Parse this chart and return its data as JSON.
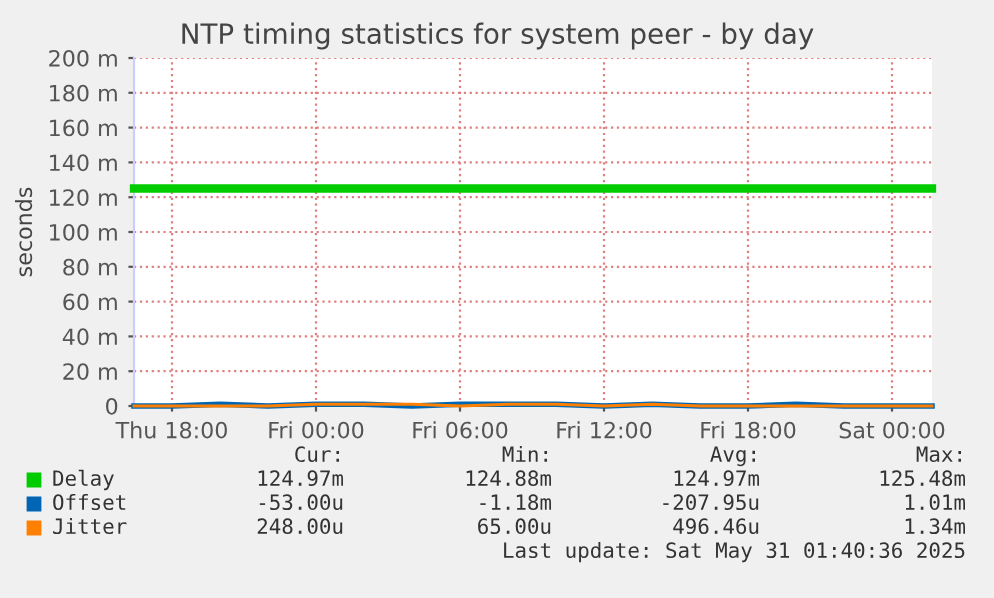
{
  "chart_data": {
    "type": "line",
    "title": "NTP timing statistics for system peer - by day",
    "ylabel": "seconds",
    "x": [
      "2025-05-29T16:25",
      "2025-05-29T18:00",
      "2025-05-29T20:00",
      "2025-05-29T22:00",
      "2025-05-30T00:00",
      "2025-05-30T02:00",
      "2025-05-30T04:00",
      "2025-05-30T06:00",
      "2025-05-30T08:00",
      "2025-05-30T10:00",
      "2025-05-30T12:00",
      "2025-05-30T14:00",
      "2025-05-30T16:00",
      "2025-05-30T18:00",
      "2025-05-30T20:00",
      "2025-05-30T22:00",
      "2025-05-31T00:00",
      "2025-05-31T01:40"
    ],
    "series": [
      {
        "name": "Delay",
        "color": "#00cc00",
        "values": [
          125,
          125,
          125,
          125,
          125,
          125,
          125,
          125,
          125,
          125,
          125,
          125,
          125,
          125,
          125,
          125,
          125,
          125
        ]
      },
      {
        "name": "Offset",
        "color": "#0066b3",
        "values": [
          0,
          0,
          1,
          0,
          1,
          1,
          0,
          1,
          1,
          1,
          0,
          1,
          0,
          0,
          1,
          0,
          0,
          0
        ]
      },
      {
        "name": "Jitter",
        "color": "#ff8000",
        "values": [
          0,
          0,
          0,
          0,
          1,
          1,
          1,
          0,
          1,
          1,
          0,
          1,
          0,
          0,
          0,
          0,
          0,
          0
        ]
      }
    ],
    "xlim": [
      "2025-05-29T16:25",
      "2025-05-31T01:40"
    ],
    "xticks": [
      {
        "value": "2025-05-29T18:00",
        "label": "Thu 18:00"
      },
      {
        "value": "2025-05-30T00:00",
        "label": "Fri 00:00"
      },
      {
        "value": "2025-05-30T06:00",
        "label": "Fri 06:00"
      },
      {
        "value": "2025-05-30T12:00",
        "label": "Fri 12:00"
      },
      {
        "value": "2025-05-30T18:00",
        "label": "Fri 18:00"
      },
      {
        "value": "2025-05-31T00:00",
        "label": "Sat 00:00"
      }
    ],
    "ylim": [
      0,
      200
    ],
    "yticks": [
      0,
      {
        "value": 20,
        "label": "20 m"
      },
      {
        "value": 40,
        "label": "40 m"
      },
      {
        "value": 60,
        "label": "60 m"
      },
      {
        "value": 80,
        "label": "80 m"
      },
      {
        "value": 100,
        "label": "100 m"
      },
      {
        "value": 120,
        "label": "120 m"
      },
      {
        "value": 140,
        "label": "140 m"
      },
      {
        "value": 160,
        "label": "160 m"
      },
      {
        "value": 180,
        "label": "180 m"
      },
      {
        "value": 200,
        "label": "200 m"
      }
    ],
    "grid": true,
    "legend": "bottom",
    "annotations": [
      "Cur:",
      "Min:",
      "Avg:",
      "Max:",
      "124.97m",
      "124.88m",
      "124.97m",
      "125.48m",
      "-53.00u",
      "-1.18m",
      "-207.95u",
      "1.01m",
      "248.00u",
      "65.00u",
      "496.46u",
      "1.34m",
      "Last update: Sat May 31 01:40:36 2025"
    ]
  }
}
